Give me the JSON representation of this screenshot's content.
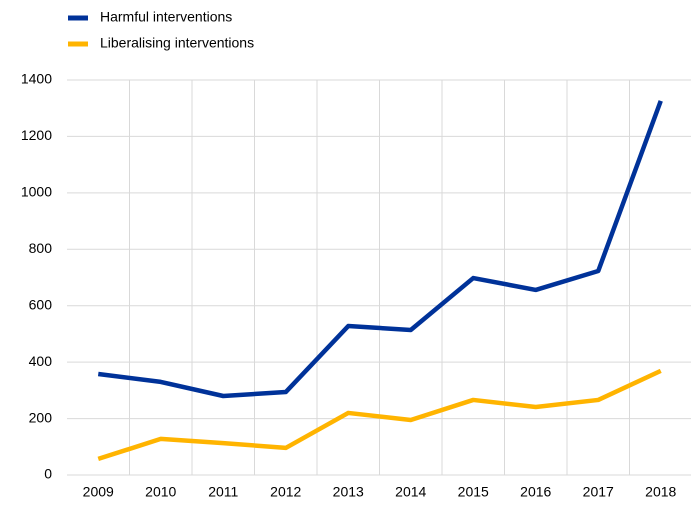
{
  "chart_data": {
    "type": "line",
    "categories": [
      "2009",
      "2010",
      "2011",
      "2012",
      "2013",
      "2014",
      "2015",
      "2016",
      "2017",
      "2018"
    ],
    "series": [
      {
        "name": "Harmful interventions",
        "color": "#003299",
        "values": [
          358,
          330,
          280,
          294,
          528,
          514,
          698,
          656,
          723,
          1326
        ]
      },
      {
        "name": "Liberalising interventions",
        "color": "#ffb400",
        "values": [
          57,
          128,
          113,
          96,
          220,
          195,
          266,
          241,
          266,
          369
        ]
      }
    ],
    "ylim": [
      0,
      1400
    ],
    "yticks": [
      0,
      200,
      400,
      600,
      800,
      1000,
      1200,
      1400
    ],
    "grid": true,
    "legend": "top-left"
  }
}
